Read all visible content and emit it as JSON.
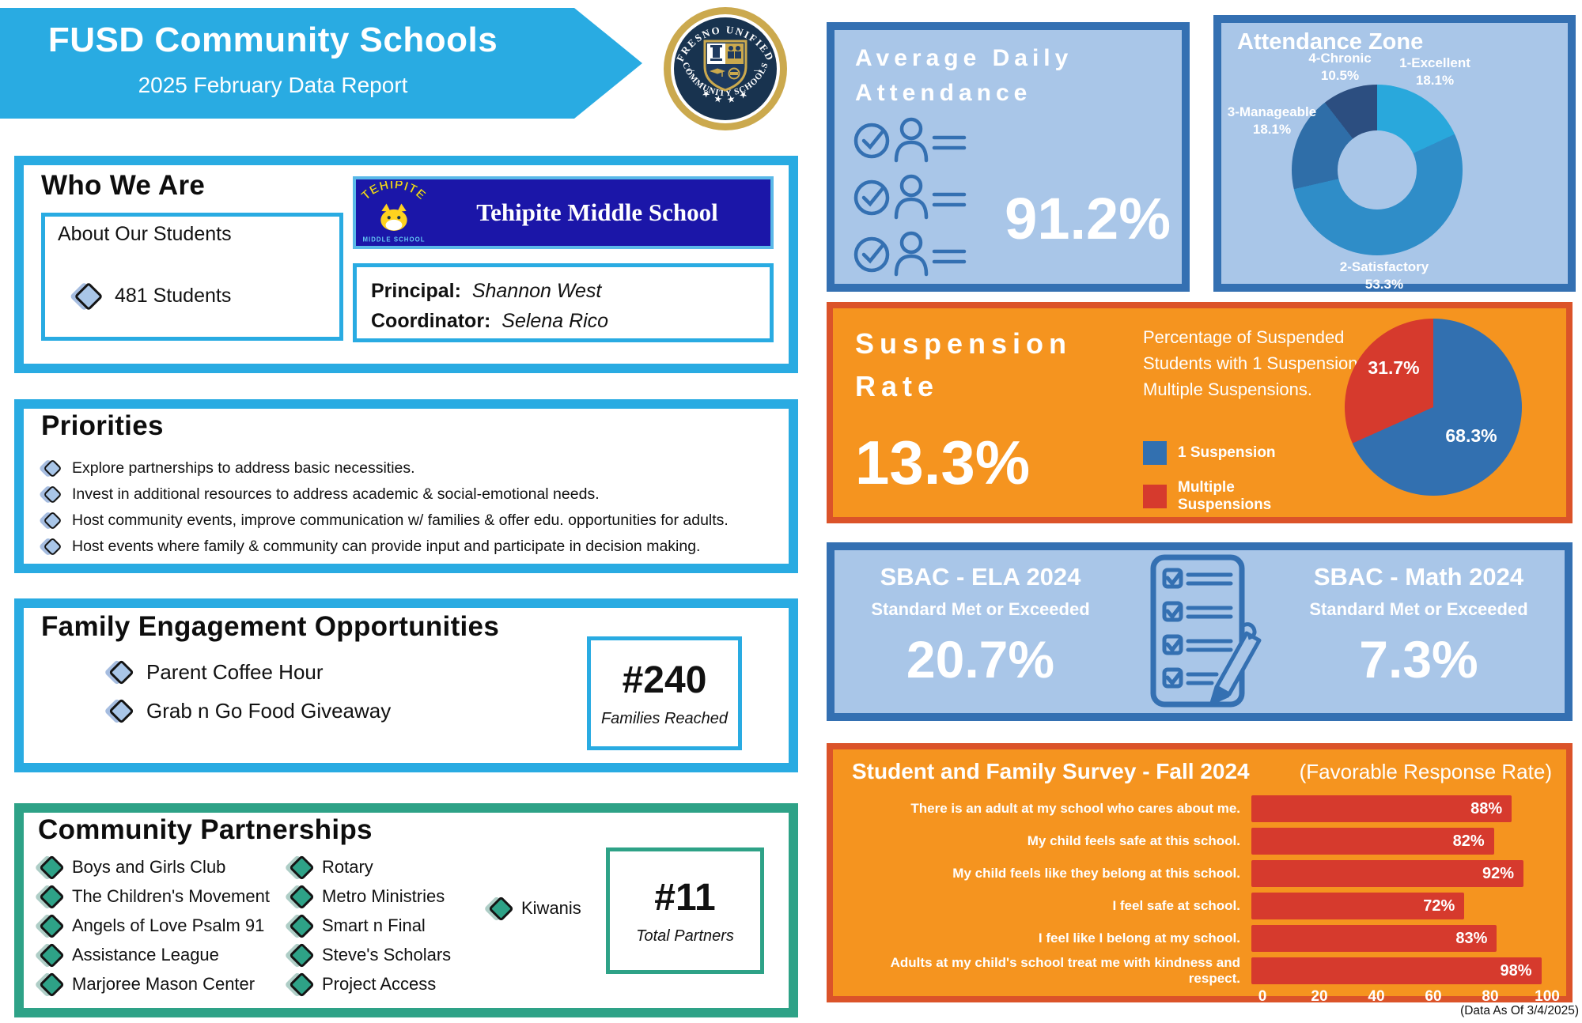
{
  "header": {
    "title": "FUSD Community Schools",
    "subtitle": "2025 February Data Report",
    "seal_top": "FRESNO UNIFIED",
    "seal_bottom": "COMMUNITY SCHOOLS",
    "seal_stars": "★ ★ ★ ★"
  },
  "who_we_are": {
    "title": "Who We Are",
    "about_label": "About Our Students",
    "students": "481 Students",
    "school_logo_name": "TEHIPITE",
    "school_logo_sub": "MIDDLE SCHOOL",
    "school_name": "Tehipite Middle School",
    "principal_label": "Principal:",
    "principal": "Shannon West",
    "coordinator_label": "Coordinator:",
    "coordinator": "Selena Rico"
  },
  "priorities": {
    "title": "Priorities",
    "items": [
      "Explore partnerships to address basic necessities.",
      "Invest in additional resources to address academic & social-emotional needs.",
      "Host community events, improve communication w/ families & offer edu. opportunities for adults.",
      "Host events where family & community can provide input and participate in decision making."
    ]
  },
  "family_engagement": {
    "title": "Family Engagement Opportunities",
    "items": [
      "Parent Coffee Hour",
      "Grab n Go Food Giveaway"
    ],
    "stat_value": "#240",
    "stat_label": "Families Reached"
  },
  "partnerships": {
    "title": "Community Partnerships",
    "column1": [
      "Boys and Girls Club",
      "The Children's Movement",
      "Angels of Love Psalm 91",
      "Assistance League",
      "Marjoree Mason Center"
    ],
    "column2": [
      "Rotary",
      "Metro Ministries",
      "Smart n Final",
      "Steve's Scholars",
      "Project Access"
    ],
    "column3": [
      "Kiwanis"
    ],
    "stat_value": "#11",
    "stat_label": "Total Partners"
  },
  "attendance": {
    "title_line1": "Average Daily",
    "title_line2": "Attendance",
    "value": "91.2%"
  },
  "suspension": {
    "title_line1": "Suspension",
    "title_line2": "Rate",
    "value": "13.3%",
    "description": "Percentage of Suspended Students with 1 Suspension or Multiple Suspensions."
  },
  "sbac": {
    "ela_title": "SBAC - ELA 2024",
    "ela_sub": "Standard Met or Exceeded",
    "ela_value": "20.7%",
    "math_title": "SBAC - Math 2024",
    "math_sub": "Standard Met or Exceeded",
    "math_value": "7.3%"
  },
  "survey": {
    "title": "Student and Family Survey - Fall 2024",
    "subtitle": "(Favorable Response Rate)"
  },
  "footer_note": "(Data As Of 3/4/2025)",
  "colors": {
    "sky_blue": "#29ABE2",
    "light_blue_panel": "#A9C6E8",
    "dark_blue_border": "#3470B2",
    "orange_panel": "#F5941F",
    "orange_border": "#DB5329",
    "teal": "#2EA287",
    "red": "#D63A2D",
    "navy": "#18334F",
    "gold": "#CBA94E",
    "school_banner_blue": "#1B16A8"
  },
  "chart_data": [
    {
      "type": "pie",
      "variant": "donut",
      "title": "Attendance Zone",
      "labels": [
        "1-Excellent",
        "2-Satisfactory",
        "3-Manageable",
        "4-Chronic"
      ],
      "values": [
        18.1,
        53.3,
        18.1,
        10.5
      ],
      "colors": [
        "#29A8DC",
        "#2F8DC8",
        "#2F6EA8",
        "#2C4E80"
      ],
      "hole_ratio": 0.46,
      "legend_position": "around-slices"
    },
    {
      "type": "pie",
      "title": "Percentage of Suspended Students with 1 Suspension or Multiple Suspensions",
      "labels": [
        "1 Suspension",
        "Multiple Suspensions"
      ],
      "values": [
        68.3,
        31.7
      ],
      "colors": [
        "#3270B0",
        "#D63A2D"
      ],
      "legend_position": "left"
    },
    {
      "type": "bar",
      "orientation": "horizontal",
      "title": "Student and Family Survey - Fall 2024",
      "subtitle": "(Favorable Response Rate)",
      "categories": [
        "There is an adult at my school who cares about me.",
        "My child feels safe at this school.",
        "My child feels like they belong at this school.",
        "I feel safe at school.",
        "I feel like I belong at my school.",
        "Adults at my child's school treat me with kindness and respect."
      ],
      "values": [
        88,
        82,
        92,
        72,
        83,
        98
      ],
      "xlim": [
        0,
        100
      ],
      "ticks": [
        0,
        20,
        40,
        60,
        80,
        100
      ],
      "bar_color": "#D63A2D",
      "value_label_color": "#FFFFFF",
      "grid": false
    }
  ]
}
